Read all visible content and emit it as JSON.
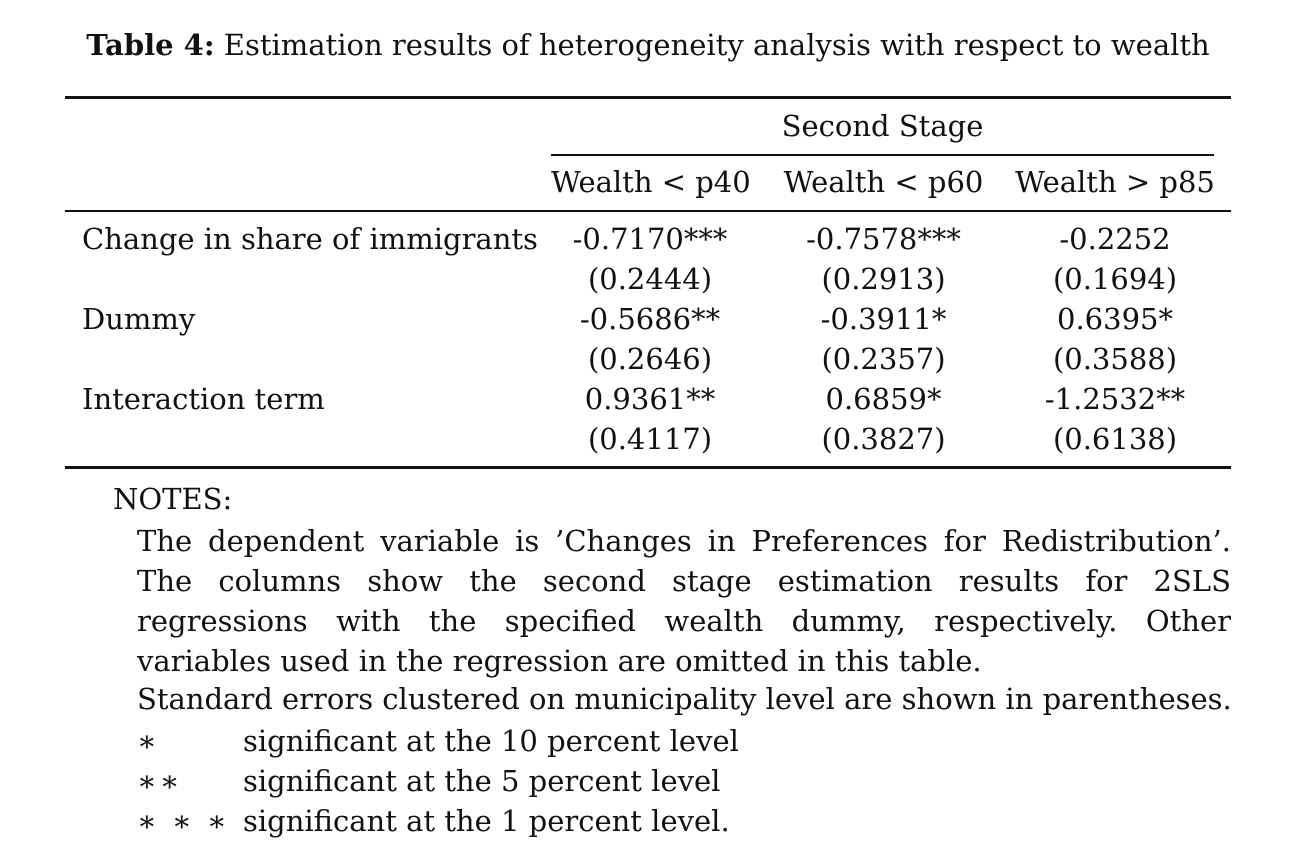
{
  "caption": {
    "label": "Table 4:",
    "text": "Estimation results of heterogeneity analysis with respect to wealth"
  },
  "table": {
    "stage_header": "Second Stage",
    "columns": [
      "Wealth < p40",
      "Wealth < p60",
      "Wealth > p85"
    ],
    "rows": [
      {
        "label": "Change in share of immigrants",
        "coef": [
          "-0.7170***",
          "-0.7578***",
          "-0.2252"
        ],
        "se": [
          "(0.2444)",
          "(0.2913)",
          "(0.1694)"
        ]
      },
      {
        "label": "Dummy",
        "coef": [
          "-0.5686**",
          "-0.3911*",
          "0.6395*"
        ],
        "se": [
          "(0.2646)",
          "(0.2357)",
          "(0.3588)"
        ]
      },
      {
        "label": "Interaction term",
        "coef": [
          "0.9361**",
          "0.6859*",
          "-1.2532**"
        ],
        "se": [
          "(0.4117)",
          "(0.3827)",
          "(0.6138)"
        ]
      }
    ]
  },
  "notes": {
    "title": "NOTES:",
    "paragraph": "The dependent variable is ’Changes in Preferences for Redistribution’. The columns show the second stage estimation results for 2SLS regressions with the specified wealth dummy, respectively. Other variables used in the regression are omitted in this table.",
    "se_note": "Standard errors clustered on municipality level are shown in parentheses.",
    "significance": [
      {
        "symbol": "∗",
        "text": "significant at the 10 percent level"
      },
      {
        "symbol": "∗∗",
        "text": "significant at the 5 percent level"
      },
      {
        "symbol": "∗ ∗ ∗",
        "text": "significant at the 1 percent level."
      }
    ]
  }
}
